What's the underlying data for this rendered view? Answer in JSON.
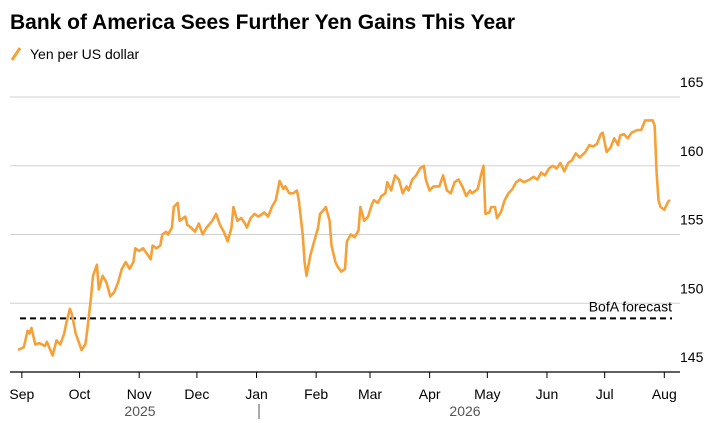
{
  "chart_data": {
    "type": "line",
    "title": "Bank of America Sees Further Yen Gains This Year",
    "xlim": [
      -2,
      338
    ],
    "ylim": [
      145,
      165
    ],
    "yticks": [
      145,
      150,
      155,
      160,
      165
    ],
    "xticks": [
      {
        "value": 0,
        "label": "Sep"
      },
      {
        "value": 30,
        "label": "Oct"
      },
      {
        "value": 61,
        "label": "Nov"
      },
      {
        "value": 91,
        "label": "Dec"
      },
      {
        "value": 122,
        "label": "Jan"
      },
      {
        "value": 153,
        "label": "Feb"
      },
      {
        "value": 181,
        "label": "Mar"
      },
      {
        "value": 212,
        "label": "Apr"
      },
      {
        "value": 242,
        "label": "May"
      },
      {
        "value": 273,
        "label": "Jun"
      },
      {
        "value": 303,
        "label": "Jul"
      },
      {
        "value": 334,
        "label": "Aug"
      }
    ],
    "x_group_labels": [
      "2025",
      "2026"
    ],
    "grid": true,
    "reference_line": {
      "value": 148.9,
      "label": "BofA forecast"
    },
    "series": [
      {
        "name": "Yen per US dollar",
        "color": "#f5a138",
        "x": [
          -2,
          1,
          3,
          4,
          5,
          7,
          9,
          12,
          13,
          16,
          18,
          20,
          22,
          23,
          25,
          26,
          28,
          30,
          31,
          33,
          34,
          36,
          37,
          39,
          40,
          42,
          44,
          46,
          48,
          50,
          52,
          54,
          56,
          58,
          59,
          61,
          63,
          65,
          67,
          68,
          70,
          72,
          73,
          75,
          76,
          78,
          79,
          81,
          82,
          85,
          86,
          88,
          90,
          92,
          94,
          96,
          99,
          101,
          103,
          105,
          107,
          109,
          110,
          112,
          114,
          116,
          117,
          119,
          121,
          123,
          126,
          128,
          130,
          132,
          134,
          136,
          137,
          139,
          141,
          143,
          144,
          146,
          147,
          148,
          150,
          152,
          154,
          155,
          157,
          158,
          160,
          161,
          163,
          164,
          166,
          168,
          169,
          171,
          173,
          175,
          176,
          178,
          180,
          182,
          183,
          185,
          187,
          189,
          190,
          192,
          194,
          196,
          198,
          200,
          201,
          203,
          205,
          207,
          209,
          210,
          212,
          214,
          216,
          217,
          219,
          221,
          223,
          225,
          227,
          229,
          231,
          233,
          234,
          237,
          239,
          240,
          241,
          243,
          244,
          246,
          247,
          249,
          251,
          253,
          255,
          257,
          259,
          261,
          264,
          266,
          268,
          270,
          272,
          274,
          276,
          278,
          280,
          282,
          284,
          286,
          288,
          290,
          293,
          295,
          297,
          299,
          301,
          302,
          304,
          306,
          308,
          310,
          311,
          313,
          315,
          317,
          320,
          322,
          324,
          326,
          328,
          329,
          330,
          331,
          332,
          334,
          336,
          337
        ],
        "values": [
          146.6,
          146.8,
          148.0,
          147.8,
          148.2,
          147.0,
          147.1,
          146.9,
          147.2,
          146.2,
          147.3,
          147.0,
          147.8,
          148.5,
          149.6,
          149.2,
          147.8,
          147.0,
          146.6,
          147.0,
          148.0,
          150.5,
          152.0,
          152.8,
          151.0,
          152.0,
          151.5,
          150.5,
          150.8,
          151.5,
          152.5,
          153.0,
          152.5,
          153.0,
          154.0,
          153.8,
          154.0,
          153.6,
          153.2,
          154.2,
          154.0,
          154.2,
          155.0,
          155.2,
          155.0,
          155.5,
          157.0,
          157.3,
          156.0,
          156.3,
          155.7,
          155.5,
          155.2,
          155.8,
          155.0,
          155.5,
          156.0,
          156.5,
          155.7,
          155.2,
          154.5,
          155.5,
          157.0,
          156.0,
          156.2,
          155.8,
          155.5,
          156.2,
          156.5,
          156.3,
          156.6,
          156.3,
          157.0,
          157.5,
          158.9,
          158.3,
          158.5,
          158.0,
          158.0,
          158.2,
          157.5,
          155.0,
          153.0,
          152.0,
          153.5,
          154.5,
          155.5,
          156.5,
          156.8,
          157.0,
          156.0,
          154.2,
          153.0,
          152.7,
          152.3,
          152.5,
          154.5,
          155.0,
          154.8,
          155.3,
          157.0,
          156.0,
          156.3,
          157.2,
          157.5,
          157.3,
          157.8,
          158.0,
          158.8,
          158.2,
          159.3,
          159.0,
          158.0,
          158.5,
          158.2,
          159.0,
          159.3,
          159.8,
          160.0,
          159.0,
          158.2,
          158.5,
          158.5,
          158.5,
          159.3,
          158.2,
          158.0,
          158.8,
          159.0,
          158.5,
          157.8,
          158.2,
          158.0,
          158.3,
          159.5,
          160.0,
          156.5,
          156.6,
          157.0,
          157.0,
          156.2,
          156.6,
          157.5,
          158.0,
          158.3,
          158.8,
          159.0,
          158.8,
          159.0,
          159.2,
          159.0,
          159.5,
          159.3,
          159.8,
          160.0,
          159.8,
          160.2,
          159.6,
          160.2,
          160.4,
          160.9,
          160.6,
          161.0,
          161.5,
          161.4,
          161.6,
          162.3,
          162.4,
          161.0,
          161.3,
          162.0,
          161.5,
          162.2,
          162.3,
          162.0,
          162.4,
          162.6,
          162.6,
          163.3,
          163.3,
          163.3,
          162.9,
          159.5,
          157.5,
          157.0,
          156.8,
          157.4,
          157.5
        ]
      }
    ]
  }
}
